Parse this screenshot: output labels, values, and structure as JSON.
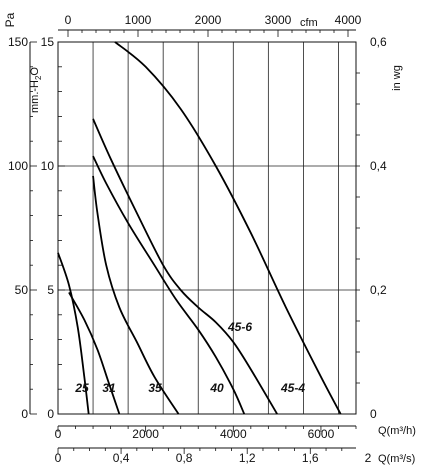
{
  "chart_data": {
    "type": "line",
    "axes": {
      "left_pa": {
        "label": "Pa",
        "ticks": [
          "0",
          "50",
          "100",
          "150"
        ],
        "range": [
          0,
          150
        ]
      },
      "left_mm": {
        "label": "mm.-H",
        "label_sub": "2",
        "label_tail": "O",
        "ticks": [
          "0",
          "5",
          "10",
          "15"
        ],
        "range": [
          0,
          15
        ]
      },
      "right_inwg": {
        "label": "in wg",
        "ticks": [
          "0",
          "0,2",
          "0,4",
          "0,6"
        ],
        "range": [
          0,
          0.6
        ]
      },
      "top_cfm": {
        "label": "cfm",
        "ticks": [
          "0",
          "1000",
          "2000",
          "3000",
          "4000"
        ],
        "range": [
          0,
          4000
        ]
      },
      "bottom_m3h": {
        "label": "Q(m³/h)",
        "ticks": [
          "0",
          "2000",
          "4000",
          "6000"
        ],
        "range": [
          0,
          6800
        ]
      },
      "bottom_m3s": {
        "label": "Q(m³/s)",
        "ticks": [
          "0",
          "0,4",
          "0,8",
          "1,2",
          "1,6",
          "2"
        ],
        "range": [
          0,
          1.89
        ]
      }
    },
    "grid": true,
    "series": [
      {
        "name": "25",
        "x": [
          0,
          250,
          450,
          600,
          700
        ],
        "y": [
          6.5,
          5.2,
          3.5,
          1.5,
          0
        ]
      },
      {
        "name": "31",
        "x": [
          250,
          600,
          900,
          1150,
          1400
        ],
        "y": [
          4.9,
          3.8,
          2.6,
          1.3,
          0
        ]
      },
      {
        "name": "35",
        "x": [
          800,
          900,
          1100,
          1400,
          1800,
          2200,
          2750
        ],
        "y": [
          9.6,
          8.1,
          6.0,
          4.3,
          2.9,
          1.5,
          0
        ]
      },
      {
        "name": "40",
        "x": [
          800,
          1100,
          1600,
          2200,
          2700,
          3200,
          3600,
          4000,
          4250
        ],
        "y": [
          10.4,
          9.3,
          7.7,
          6.0,
          4.6,
          3.4,
          2.3,
          1.0,
          0
        ]
      },
      {
        "name": "45-6",
        "x": [
          800,
          1200,
          1800,
          2400,
          2800,
          3200,
          3600,
          4000,
          4400,
          5000
        ],
        "y": [
          11.9,
          10.3,
          8.1,
          6.0,
          5.0,
          4.3,
          3.7,
          2.9,
          1.8,
          0
        ]
      },
      {
        "name": "45-4",
        "x": [
          1300,
          2000,
          2800,
          3600,
          4400,
          5200,
          6000,
          6450
        ],
        "y": [
          15,
          14.0,
          12.3,
          10.0,
          7.3,
          4.3,
          1.5,
          0
        ]
      }
    ]
  }
}
